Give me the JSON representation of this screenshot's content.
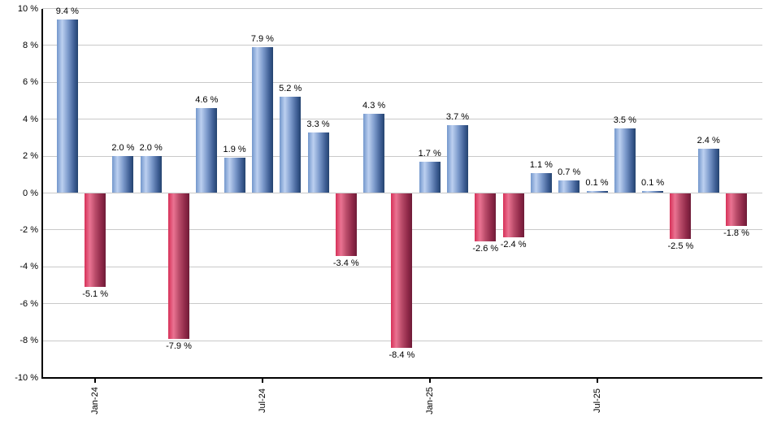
{
  "chart_data": {
    "type": "bar",
    "title": "",
    "description": "Monthly total return percentages, positive months blue and negative months red",
    "values": [
      9.4,
      -5.1,
      2.0,
      2.0,
      -7.9,
      4.6,
      1.9,
      7.9,
      5.2,
      3.3,
      -3.4,
      4.3,
      -8.4,
      1.7,
      3.7,
      -2.6,
      -2.4,
      1.1,
      0.7,
      0.1,
      3.5,
      0.1,
      -2.5,
      2.4,
      -1.8
    ],
    "bar_labels": [
      "9.4 %",
      "-5.1 %",
      "2.0 %",
      "2.0 %",
      "-7.9 %",
      "4.6 %",
      "1.9 %",
      "7.9 %",
      "5.2 %",
      "3.3 %",
      "-3.4 %",
      "4.3 %",
      "-8.4 %",
      "1.7 %",
      "3.7 %",
      "-2.6 %",
      "-2.4 %",
      "1.1 %",
      "0.7 %",
      "0.1 %",
      "3.5 %",
      "0.1 %",
      "-2.5 %",
      "2.4 %",
      "-1.8 %"
    ],
    "ylim": [
      -10,
      10
    ],
    "y_axis": {
      "ticks": [
        {
          "label": "10 %",
          "value": 10
        },
        {
          "label": "8 %",
          "value": 8
        },
        {
          "label": "6 %",
          "value": 6
        },
        {
          "label": "4 %",
          "value": 4
        },
        {
          "label": "2 %",
          "value": 2
        },
        {
          "label": "0 %",
          "value": 0
        },
        {
          "label": "-2 %",
          "value": -2
        },
        {
          "label": "-4 %",
          "value": -4
        },
        {
          "label": "-6 %",
          "value": -6
        },
        {
          "label": "-8 %",
          "value": -8
        },
        {
          "label": "-10 %",
          "value": -10
        }
      ]
    },
    "x_axis": {
      "ticks": [
        {
          "label": "Jan-24",
          "bar_index": 1
        },
        {
          "label": "Jul-24",
          "bar_index": 7
        },
        {
          "label": "Jan-25",
          "bar_index": 13
        },
        {
          "label": "Jul-25",
          "bar_index": 19
        }
      ]
    },
    "layout_hints": {
      "grid": "horizontal",
      "legend": "none",
      "value_labels": "outside-end"
    },
    "colors": {
      "positive_gradient": [
        "#7397cc",
        "#bcd0f0",
        "#7e9ccd",
        "#3f5f95",
        "#24436f"
      ],
      "negative_gradient": [
        "#d63058",
        "#ea7392",
        "#b84a68",
        "#8c2646",
        "#6f1c38"
      ],
      "gridline": "#c9c9c9",
      "axis": "#000000",
      "text": "#000000",
      "background": "#ffffff"
    }
  }
}
